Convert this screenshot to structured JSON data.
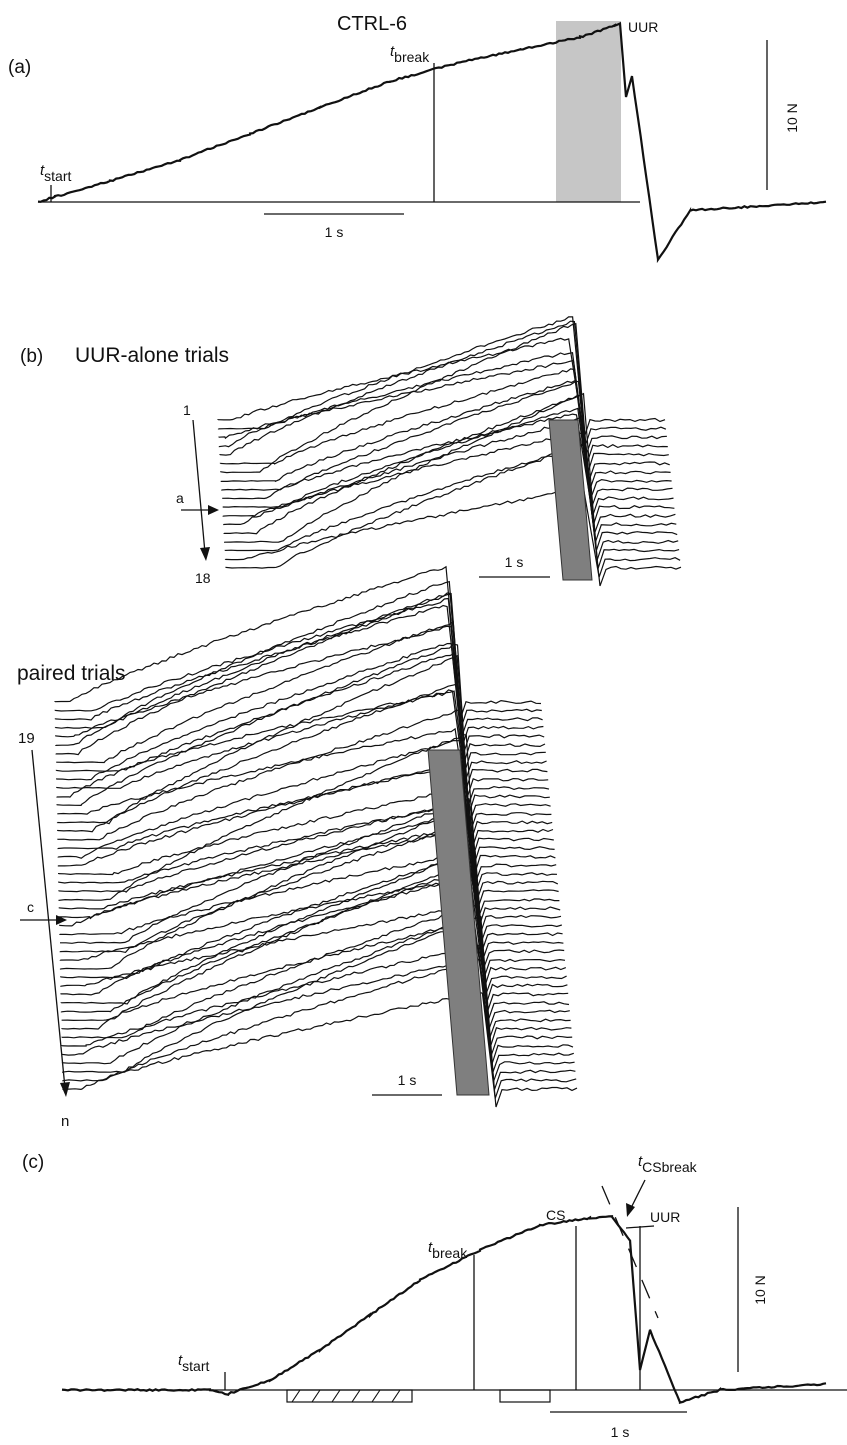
{
  "title": "CTRL-6",
  "panel_a": {
    "label": "(a)",
    "t_start": "t",
    "t_start_sub": "start",
    "t_break": "t",
    "t_break_sub": "break",
    "uur": "UUR",
    "scale_time": "1 s",
    "scale_force": "10 N"
  },
  "panel_b": {
    "label": "(b)",
    "uur_alone": "UUR-alone trials",
    "first_trial": "1",
    "last_trial": "18",
    "arrow_a": "a",
    "scale_time": "1 s",
    "paired": "paired trials",
    "paired_first": "19",
    "paired_last": "n",
    "arrow_c": "c",
    "scale_time_2": "1 s"
  },
  "panel_c": {
    "label": "(c)",
    "t_start": "t",
    "t_start_sub": "start",
    "t_break": "t",
    "t_break_sub": "break",
    "t_csbreak": "t",
    "t_csbreak_sub": "CSbreak",
    "cs": "CS",
    "uur": "UUR",
    "scale_time": "1 s",
    "scale_force": "10 N"
  },
  "chart_data": [
    {
      "type": "line",
      "panel": "a",
      "title": "CTRL-6",
      "xlabel": "",
      "ylabel": "",
      "scale_bars": {
        "time": "1 s",
        "force": "10 N"
      },
      "series": [
        {
          "values": [
            0,
            0.5,
            2,
            4,
            6.5,
            9,
            11.5,
            13.3,
            14.5,
            15.7,
            16.8,
            17,
            10,
            12,
            -5.5,
            -0.8,
            0
          ]
        }
      ]
    },
    {
      "type": "line",
      "panel": "b-uur-alone",
      "trials": 18,
      "marked_trial": "a",
      "scale_bars": {
        "time": "1 s"
      }
    },
    {
      "type": "line",
      "panel": "b-paired",
      "trials_from": "19",
      "trials_to": "n",
      "marked_trial": "c",
      "scale_bars": {
        "time": "1 s"
      }
    },
    {
      "type": "line",
      "panel": "c",
      "scale_bars": {
        "time": "1 s",
        "force": "10 N"
      },
      "series": [
        {
          "values": [
            0,
            0,
            -0.4,
            1,
            4,
            7.5,
            11,
            14,
            16.5,
            17.2,
            17.3,
            15,
            2,
            6,
            -1.2,
            0,
            0.6
          ]
        }
      ]
    }
  ]
}
